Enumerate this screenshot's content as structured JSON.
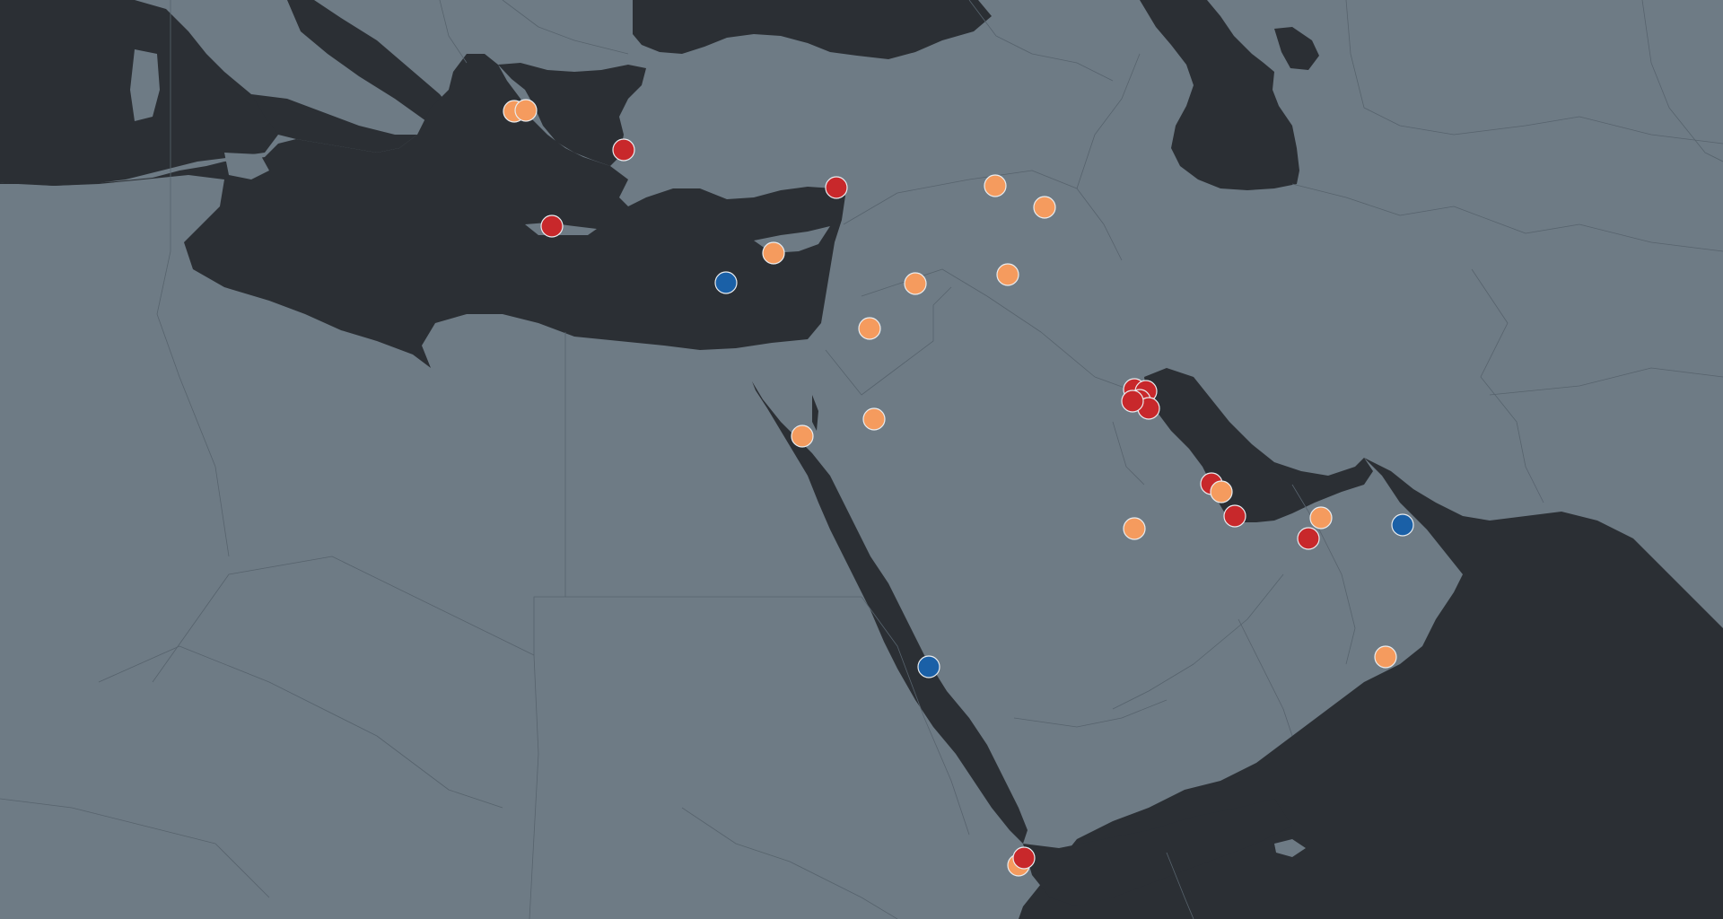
{
  "map": {
    "type": "dot-map",
    "region": "Middle East",
    "colors": {
      "land": "#6e7b85",
      "water": "#2b2f34",
      "border": "#57636d",
      "marker_stroke": "#e9ecef"
    }
  },
  "legend_categories": {
    "red": "#c8282b",
    "orange": "#f59b5e",
    "blue": "#1a60a7"
  },
  "markers": [
    {
      "id": "m1",
      "category": "orange"
    },
    {
      "id": "m2",
      "category": "orange"
    },
    {
      "id": "m3",
      "category": "red"
    },
    {
      "id": "m4",
      "category": "red"
    },
    {
      "id": "m5",
      "category": "red"
    },
    {
      "id": "m6",
      "category": "orange"
    },
    {
      "id": "m7",
      "category": "orange"
    },
    {
      "id": "m8",
      "category": "blue"
    },
    {
      "id": "m9",
      "category": "orange"
    },
    {
      "id": "m10",
      "category": "orange"
    },
    {
      "id": "m11",
      "category": "orange"
    },
    {
      "id": "m12",
      "category": "orange"
    },
    {
      "id": "m13",
      "category": "orange"
    },
    {
      "id": "m14",
      "category": "orange"
    },
    {
      "id": "m15",
      "category": "red"
    },
    {
      "id": "m16",
      "category": "red"
    },
    {
      "id": "m17",
      "category": "red"
    },
    {
      "id": "m18",
      "category": "red"
    },
    {
      "id": "m19",
      "category": "red"
    },
    {
      "id": "m20",
      "category": "red"
    },
    {
      "id": "m21",
      "category": "orange"
    },
    {
      "id": "m22",
      "category": "red"
    },
    {
      "id": "m23",
      "category": "orange"
    },
    {
      "id": "m24",
      "category": "red"
    },
    {
      "id": "m25",
      "category": "orange"
    },
    {
      "id": "m26",
      "category": "blue"
    },
    {
      "id": "m27",
      "category": "orange"
    },
    {
      "id": "m28",
      "category": "blue"
    },
    {
      "id": "m29",
      "category": "orange"
    },
    {
      "id": "m30",
      "category": "red"
    }
  ]
}
